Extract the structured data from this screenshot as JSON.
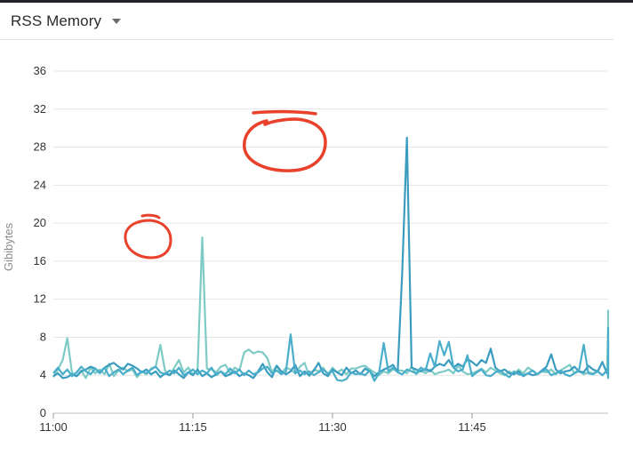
{
  "header": {
    "title": "RSS Memory",
    "dropdown_icon": "caret-down-icon"
  },
  "chart_data": {
    "type": "line",
    "title": "",
    "xlabel": "",
    "ylabel": "Gibibytes",
    "ylim": [
      0,
      36
    ],
    "yticks": [
      0,
      4,
      8,
      12,
      16,
      20,
      24,
      28,
      32,
      36
    ],
    "x_start": "11:00",
    "x_step_minutes": 0.5,
    "xtick_labels": [
      "11:00",
      "11:15",
      "11:30",
      "11:45"
    ],
    "grid": true,
    "colors": {
      "series_a": "#7ecbc5",
      "series_b": "#3a9cbf",
      "series_c": "#4aaecb",
      "annotation": "#e8412c"
    },
    "series": [
      {
        "values": [
          3.8,
          4.6,
          5.6,
          7.9,
          4.3,
          3.9,
          4.5,
          3.7,
          4.8,
          4.2,
          4.6,
          4.1,
          5.2,
          3.9,
          4.5,
          4.8,
          4.4,
          4.6,
          3.8,
          4.4,
          4.1,
          4.7,
          4.9,
          7.2,
          4.5,
          4.0,
          4.8,
          5.6,
          4.3,
          4.8,
          4.1,
          4.4,
          18.5,
          4.7,
          4.6,
          4.3,
          4.9,
          5.1,
          4.2,
          4.8,
          4.5,
          6.4,
          6.7,
          6.3,
          6.5,
          6.4,
          5.8,
          4.3,
          5.0,
          4.2,
          4.8,
          4.6,
          4.2,
          4.9,
          5.3,
          3.9,
          4.6,
          4.4,
          4.8,
          4.1,
          4.8,
          4.3,
          4.6,
          4.1,
          4.7,
          4.7,
          4.9,
          5.0,
          4.6,
          4.3,
          4.0,
          4.4,
          4.2,
          4.6,
          4.5,
          4.5,
          4.2,
          4.9,
          4.1,
          4.5,
          4.2,
          4.6,
          4.1,
          4.3,
          4.4,
          4.6,
          4.2,
          5.0,
          4.4,
          4.1,
          4.2,
          4.4,
          4.7,
          4.3,
          4.8,
          4.5,
          4.2,
          4.0,
          4.4,
          4.1,
          4.6,
          4.2,
          4.8,
          4.5,
          4.1,
          4.4,
          4.3,
          4.6,
          4.1,
          4.5,
          4.8,
          5.1,
          4.2,
          4.4,
          4.1,
          4.3,
          4.2,
          4.4,
          4.0,
          4.5,
          8.8,
          4.1,
          4.4,
          4.3,
          4.6,
          4.2,
          4.1,
          4.8,
          8.5,
          4.3,
          4.6,
          4.2,
          4.5,
          4.4,
          4.7,
          5.1,
          4.8,
          4.6,
          4.3,
          4.5,
          4.9,
          4.1,
          4.4,
          4.6,
          4.2,
          4.7,
          4.4,
          4.2,
          4.6,
          5.2,
          4.3,
          4.7,
          4.1,
          4.4,
          4.6,
          4.9,
          4.2,
          4.4,
          4.1,
          4.5,
          4.3,
          4.6,
          4.1,
          4.7,
          4.4,
          4.8,
          4.2,
          4.5,
          4.3,
          4.6,
          7.6,
          4.3,
          4.5,
          10.8,
          4.3,
          4.8,
          4.6,
          5.2,
          5.0,
          4.7,
          4.9,
          5.0,
          5.2,
          4.6,
          4.8,
          5.1,
          4.9,
          5.6,
          4.7,
          5.1
        ]
      },
      {
        "values": [
          3.9,
          4.2,
          3.7,
          3.8,
          4.1,
          3.9,
          4.4,
          4.6,
          4.9,
          4.7,
          4.3,
          4.8,
          5.1,
          5.3,
          4.9,
          4.6,
          5.2,
          5.0,
          4.7,
          4.3,
          4.6,
          4.1,
          4.4,
          3.8,
          4.2,
          4.0,
          4.5,
          4.1,
          3.7,
          4.3,
          4.0,
          4.6,
          3.9,
          4.2,
          3.8,
          4.1,
          4.4,
          3.9,
          4.1,
          4.4,
          3.9,
          4.2,
          4.0,
          3.7,
          4.4,
          5.2,
          4.3,
          3.8,
          5.0,
          4.4,
          4.1,
          4.4,
          5.1,
          3.9,
          4.4,
          4.0,
          4.5,
          5.3,
          4.2,
          3.9,
          4.6,
          4.3,
          4.0,
          4.8,
          4.2,
          4.5,
          4.1,
          4.7,
          4.4,
          3.9,
          4.3,
          4.6,
          4.8,
          5.1,
          4.3,
          15.0,
          29.0,
          4.8,
          4.6,
          4.4,
          4.7,
          4.4,
          4.9,
          5.2,
          5.0,
          5.6,
          4.8,
          5.2,
          4.9,
          5.7,
          5.4,
          5.0,
          5.6,
          5.3,
          6.8,
          4.8,
          4.4,
          4.6,
          4.2,
          4.1,
          4.4,
          3.9,
          4.2,
          4.0,
          4.1,
          4.5,
          4.9,
          6.2,
          4.6,
          4.2,
          4.4,
          4.5,
          4.9,
          4.4,
          4.3,
          5.0,
          4.6,
          4.4,
          5.4,
          4.2,
          4.8,
          4.1,
          4.5,
          4.0,
          4.3,
          4.6,
          4.2,
          4.4,
          4.6,
          4.1,
          4.5,
          4.3,
          5.7,
          4.2,
          4.3,
          4.5,
          4.0,
          4.6,
          4.2,
          4.4,
          4.6,
          4.9,
          5.2,
          4.4,
          4.0,
          4.3,
          4.7,
          4.2,
          4.6,
          7.6,
          4.8,
          4.2,
          4.5,
          5.0,
          4.7,
          4.3,
          4.1,
          4.4,
          4.2,
          4.6,
          4.0,
          4.5,
          4.3,
          4.6,
          4.2,
          4.4,
          4.0,
          4.6,
          4.2,
          4.5,
          4.1,
          4.4,
          4.6,
          4.3,
          4.8,
          4.2,
          4.5,
          4.1,
          4.4,
          4.7,
          5.0,
          4.9,
          4.6,
          4.4,
          4.8,
          4.5,
          4.9,
          4.6,
          4.3,
          4.1,
          4.5,
          4.3,
          3.8
        ]
      },
      {
        "values": [
          4.2,
          4.8,
          4.1,
          4.6,
          3.9,
          4.3,
          4.9,
          4.4,
          4.1,
          4.7,
          4.2,
          4.8,
          3.9,
          4.3,
          4.6,
          4.1,
          4.5,
          4.8,
          4.0,
          4.4,
          4.2,
          4.6,
          4.9,
          4.3,
          4.1,
          4.5,
          4.2,
          4.8,
          4.0,
          4.3,
          4.6,
          4.1,
          4.5,
          4.2,
          4.8,
          4.0,
          4.4,
          4.1,
          4.7,
          4.2,
          4.6,
          4.0,
          4.5,
          4.1,
          4.3,
          4.7,
          4.9,
          4.2,
          4.5,
          4.1,
          4.4,
          8.3,
          4.2,
          4.5,
          4.1,
          4.4,
          4.0,
          4.3,
          4.6,
          4.2,
          4.4,
          3.5,
          3.4,
          3.6,
          4.3,
          4.1,
          4.2,
          4.0,
          4.5,
          3.4,
          4.2,
          7.4,
          4.4,
          4.8,
          4.3,
          4.1,
          4.6,
          4.4,
          4.2,
          4.8,
          4.5,
          6.3,
          4.9,
          7.6,
          6.1,
          7.5,
          4.8,
          4.4,
          4.6,
          6.1,
          3.9,
          4.3,
          4.6,
          4.0,
          3.9,
          4.3,
          4.5,
          4.1,
          3.8,
          4.4,
          4.1,
          4.0,
          4.2,
          4.5,
          4.1,
          4.4,
          4.6,
          4.0,
          4.2,
          4.5,
          4.1,
          3.9,
          4.2,
          4.6,
          7.2,
          4.2,
          4.1,
          4.4,
          4.0,
          4.5,
          4.3,
          4.6,
          4.1,
          4.4,
          4.2,
          4.5,
          4.1,
          4.3,
          3.9,
          4.5,
          4.1,
          4.5,
          4.7,
          4.2,
          4.0,
          4.3,
          4.6,
          4.1,
          4.4,
          4.0,
          3.8,
          4.6,
          4.1,
          8.0,
          4.1,
          4.5,
          4.2,
          4.6,
          4.1,
          4.4,
          4.0,
          3.7,
          7.6,
          4.3,
          4.4,
          4.1,
          4.6,
          4.3,
          4.7,
          4.2,
          4.5,
          4.9,
          4.3,
          4.1,
          4.6,
          4.2,
          4.5,
          4.8,
          4.1,
          4.4,
          4.0,
          4.3,
          4.7,
          4.2,
          4.4,
          3.9,
          9.0,
          4.6,
          4.1,
          4.4,
          4.0,
          4.3,
          6.9,
          4.4,
          4.1,
          4.8,
          4.6,
          4.3,
          4.1,
          4.5,
          4.6,
          4.3,
          3.9,
          4.4,
          4.7,
          4.5,
          4.4,
          3.8
        ]
      }
    ]
  }
}
